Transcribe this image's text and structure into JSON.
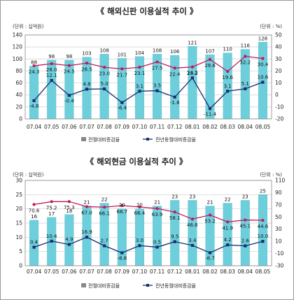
{
  "chart_data": [
    {
      "type": "bar",
      "title": "《 해외신판 이용실적 추이 》",
      "left_unit": "(단위 : 십억원)",
      "right_unit": "(단위 : %)",
      "categories": [
        "07.04",
        "07.05",
        "07.06",
        "07.07",
        "07.08",
        "07.09",
        "07.10",
        "07.11",
        "07.12",
        "08.01",
        "08.02",
        "08.03",
        "08.04",
        "08.05"
      ],
      "ylim": [
        0,
        140
      ],
      "yticks": [
        "0",
        "20",
        "40",
        "60",
        "80",
        "100",
        "120",
        "140"
      ],
      "y2lim": [
        -20,
        50
      ],
      "y2ticks": [
        "-20",
        "-10",
        "0",
        "10",
        "20",
        "30",
        "40",
        "50"
      ],
      "bars": {
        "values": [
          88,
          98,
          98,
          103,
          108,
          101,
          104,
          108,
          106,
          121,
          107,
          110,
          116,
          128
        ],
        "labels": [
          "88",
          "98",
          "98",
          "103",
          "108",
          "101",
          "104",
          "108",
          "106",
          "121",
          "107",
          "110",
          "116",
          "128"
        ],
        "color": "#6ecfdc"
      },
      "series": [
        {
          "name": "전월대비증감율",
          "values": [
            24.3,
            26.0,
            24.5,
            26.5,
            23.0,
            21.7,
            23.1,
            27.5,
            22.4,
            23.3,
            29.6,
            19.6,
            32.2,
            30.4
          ],
          "labels": [
            "24.3",
            "26.0",
            "24.5",
            "26.5",
            "23.0",
            "21.7",
            "23.1",
            "27.5",
            "22.4",
            "23.3",
            "29.6",
            "19.6",
            "32.2",
            "30.4"
          ],
          "color": "#c2185b"
        },
        {
          "name": "전년동월대비증감율",
          "values": [
            -4.8,
            12.1,
            -0.4,
            4.8,
            5.0,
            -6.4,
            3.1,
            3.5,
            -1.8,
            14.2,
            -11.4,
            3.1,
            5.1,
            10.6
          ],
          "labels": [
            "-4.8",
            "12.1",
            "-0.4",
            "4.8",
            "5.0",
            "-6.4",
            "3.1",
            "3.5",
            "-1.8",
            "14.2",
            "-11.4",
            "3.1",
            "5.1",
            "10.6"
          ],
          "color": "#1f2d6b"
        }
      ],
      "legend": [
        "전월대비증감율",
        "전년동월대비증감율"
      ],
      "legend_placement": "bottom",
      "grid": true
    },
    {
      "type": "bar",
      "title": "《 해외현금 이용실적 추이 》",
      "left_unit": "(단위 : 십억원)",
      "right_unit": "(단위 : %)",
      "categories": [
        "07.04",
        "07.05",
        "07.06",
        "07.07",
        "07.08",
        "07.09",
        "07.10",
        "07.11",
        "07.12",
        "08.01",
        "08.02",
        "08.03",
        "08.04",
        "08.05"
      ],
      "ylim": [
        0,
        30
      ],
      "yticks": [
        "0",
        "5",
        "10",
        "15",
        "20",
        "25",
        "30"
      ],
      "y2lim": [
        -30,
        110
      ],
      "y2ticks": [
        "-30",
        "-10",
        "10",
        "30",
        "50",
        "70",
        "90",
        "110"
      ],
      "bars": {
        "values": [
          16,
          17,
          18,
          21,
          22,
          20,
          20,
          21,
          23,
          23,
          21,
          22,
          23,
          25
        ],
        "labels": [
          "16",
          "17",
          "18",
          "21",
          "22",
          "20",
          "20",
          "21",
          "23",
          "23",
          "21",
          "22",
          "23",
          "25"
        ],
        "color": "#6ecfdc"
      },
      "series": [
        {
          "name": "전월대비증감율",
          "values": [
            70.6,
            75.2,
            75.3,
            67.0,
            66.1,
            68.7,
            66.4,
            63.9,
            58.1,
            46.6,
            53.2,
            41.9,
            45.1,
            44.6
          ],
          "labels": [
            "70.6",
            "75.2",
            "75.3",
            "67.0",
            "66.1",
            "68.7",
            "66.4",
            "63.9",
            "58.1",
            "46.6",
            "53.2",
            "41.9",
            "45.1",
            "44.6"
          ],
          "color": "#c2185b"
        },
        {
          "name": "전년동월대비증감율",
          "values": [
            0.4,
            10.4,
            4.9,
            16.9,
            2.7,
            -8.8,
            3.0,
            0.5,
            9.5,
            3.4,
            -8.7,
            4.2,
            2.6,
            10.0
          ],
          "labels": [
            "0.4",
            "10.4",
            "4.9",
            "16.9",
            "2.7",
            "-8.8",
            "3.0",
            "0.5",
            "9.5",
            "3.4",
            "-8.7",
            "4.2",
            "2.6",
            "10.0"
          ],
          "color": "#1f2d6b"
        }
      ],
      "legend": [
        "전월대비증감율",
        "전년동월대비증감율"
      ],
      "legend_placement": "bottom",
      "grid": true
    }
  ]
}
